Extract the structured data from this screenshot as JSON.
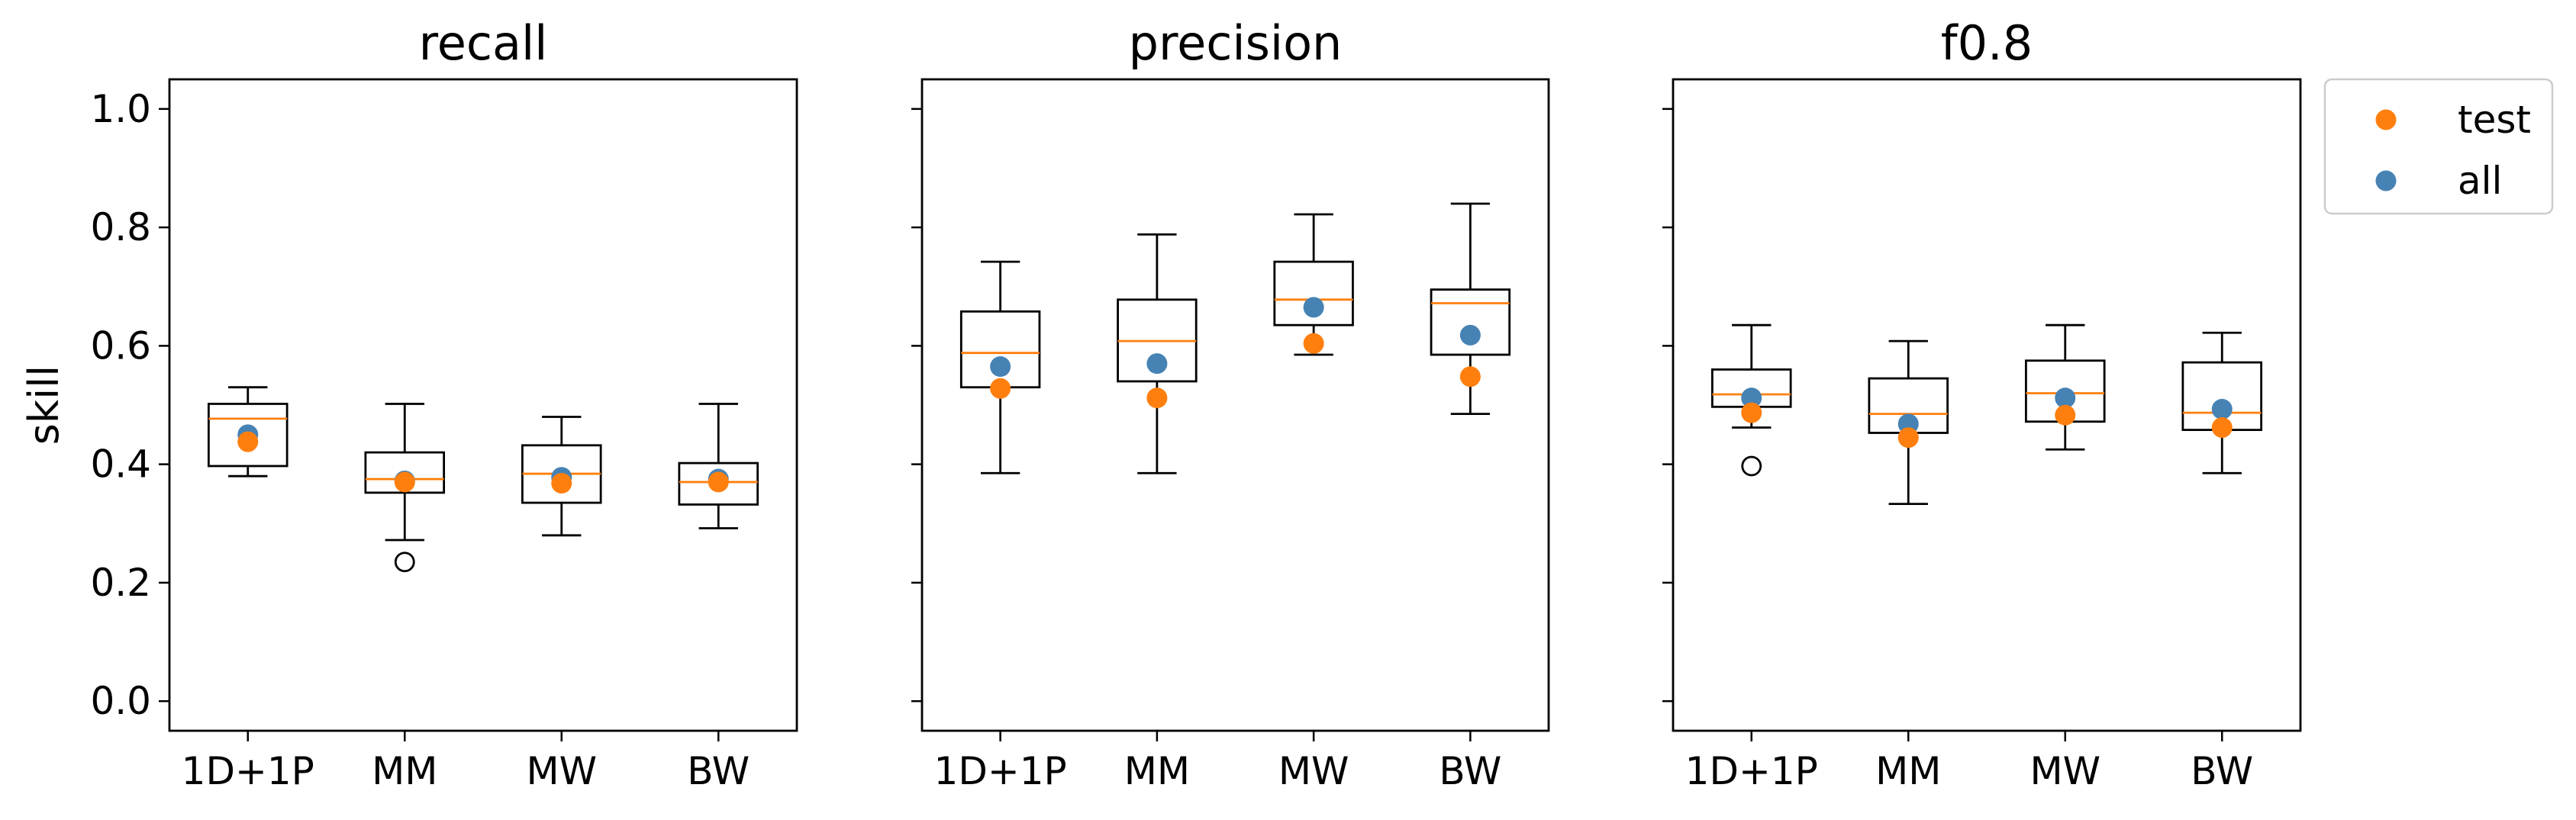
{
  "chart_data": {
    "type": "box",
    "ylabel": "skill",
    "ylim": [
      -0.05,
      1.05
    ],
    "yticks": [
      "0.0",
      "0.2",
      "0.4",
      "0.6",
      "0.8",
      "1.0"
    ],
    "categories": [
      "1D+1P",
      "MM",
      "MW",
      "BW"
    ],
    "legend": {
      "placement": "outside-top-right",
      "entries": [
        {
          "name": "test",
          "color": "#ff7f0e"
        },
        {
          "name": "all",
          "color": "#4682b4"
        }
      ]
    },
    "colors": {
      "median": "#ff7f0e",
      "test": "#ff7f0e",
      "all": "#4682b4",
      "box": "#000000"
    },
    "panels": [
      {
        "title": "recall",
        "boxes": [
          {
            "category": "1D+1P",
            "whislo": 0.38,
            "q1": 0.397,
            "med": 0.477,
            "q3": 0.502,
            "whishi": 0.53,
            "fliers": [],
            "test": 0.438,
            "all": 0.45
          },
          {
            "category": "MM",
            "whislo": 0.272,
            "q1": 0.352,
            "med": 0.375,
            "q3": 0.42,
            "whishi": 0.502,
            "fliers": [
              0.235
            ],
            "test": 0.37,
            "all": 0.372
          },
          {
            "category": "MW",
            "whislo": 0.28,
            "q1": 0.335,
            "med": 0.384,
            "q3": 0.432,
            "whishi": 0.48,
            "fliers": [],
            "test": 0.368,
            "all": 0.378
          },
          {
            "category": "BW",
            "whislo": 0.292,
            "q1": 0.332,
            "med": 0.37,
            "q3": 0.402,
            "whishi": 0.502,
            "fliers": [],
            "test": 0.37,
            "all": 0.375
          }
        ]
      },
      {
        "title": "precision",
        "boxes": [
          {
            "category": "1D+1P",
            "whislo": 0.385,
            "q1": 0.53,
            "med": 0.588,
            "q3": 0.658,
            "whishi": 0.742,
            "fliers": [],
            "test": 0.528,
            "all": 0.565
          },
          {
            "category": "MM",
            "whislo": 0.385,
            "q1": 0.54,
            "med": 0.608,
            "q3": 0.678,
            "whishi": 0.788,
            "fliers": [],
            "test": 0.512,
            "all": 0.57
          },
          {
            "category": "MW",
            "whislo": 0.585,
            "q1": 0.635,
            "med": 0.678,
            "q3": 0.742,
            "whishi": 0.822,
            "fliers": [],
            "test": 0.604,
            "all": 0.665
          },
          {
            "category": "BW",
            "whislo": 0.485,
            "q1": 0.585,
            "med": 0.672,
            "q3": 0.695,
            "whishi": 0.84,
            "fliers": [],
            "test": 0.548,
            "all": 0.618
          }
        ]
      },
      {
        "title": "f0.8",
        "boxes": [
          {
            "category": "1D+1P",
            "whislo": 0.462,
            "q1": 0.497,
            "med": 0.518,
            "q3": 0.56,
            "whishi": 0.635,
            "fliers": [
              0.397
            ],
            "test": 0.487,
            "all": 0.512
          },
          {
            "category": "MM",
            "whislo": 0.333,
            "q1": 0.453,
            "med": 0.485,
            "q3": 0.545,
            "whishi": 0.608,
            "fliers": [],
            "test": 0.445,
            "all": 0.468
          },
          {
            "category": "MW",
            "whislo": 0.425,
            "q1": 0.472,
            "med": 0.52,
            "q3": 0.575,
            "whishi": 0.635,
            "fliers": [],
            "test": 0.483,
            "all": 0.512
          },
          {
            "category": "BW",
            "whislo": 0.385,
            "q1": 0.458,
            "med": 0.487,
            "q3": 0.572,
            "whishi": 0.622,
            "fliers": [],
            "test": 0.462,
            "all": 0.493
          }
        ]
      }
    ]
  }
}
